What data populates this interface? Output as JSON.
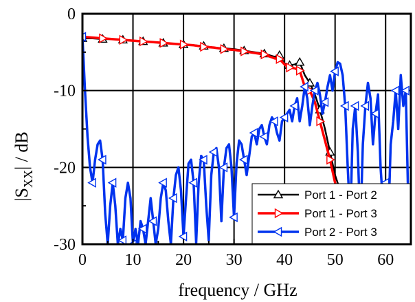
{
  "chart_data": {
    "type": "line",
    "xlabel": "frequency / GHz",
    "ylabel": "|S",
    "ylabel_sub": "XX",
    "ylabel_tail": "| / dB",
    "xlim": [
      0,
      65
    ],
    "ylim": [
      -30,
      0
    ],
    "xticks": [
      0,
      10,
      20,
      30,
      40,
      50,
      60
    ],
    "yticks": [
      0,
      -10,
      -20,
      -30
    ],
    "grid": true,
    "legend_position": "bottom-right",
    "series": [
      {
        "name": "Port 1 - Port 2",
        "color": "#000000",
        "marker": "triangle-up",
        "x": [
          0,
          2,
          4,
          6,
          8,
          10,
          12,
          14,
          16,
          18,
          20,
          22,
          24,
          26,
          28,
          30,
          32,
          34,
          36,
          38,
          39,
          40,
          41,
          42,
          43,
          44,
          45,
          46,
          47,
          48,
          49,
          50,
          52,
          54,
          56,
          58,
          60,
          62,
          64,
          65
        ],
        "y": [
          -3.2,
          -3.2,
          -3.3,
          -3.3,
          -3.4,
          -3.5,
          -3.6,
          -3.7,
          -3.8,
          -3.9,
          -4.0,
          -4.1,
          -4.2,
          -4.4,
          -4.5,
          -4.6,
          -4.8,
          -5.0,
          -5.2,
          -5.6,
          -5.4,
          -6.5,
          -6.7,
          -6.6,
          -6.3,
          -8.0,
          -9.0,
          -10.5,
          -12.5,
          -15.0,
          -18.0,
          -21.0,
          -25.0,
          -27.5,
          -29.0,
          -29.8,
          -29.5,
          -29.8,
          -29.6,
          -29.8
        ]
      },
      {
        "name": "Port 1 - Port 3",
        "color": "#ff0000",
        "marker": "triangle-right",
        "x": [
          0,
          2,
          4,
          6,
          8,
          10,
          12,
          14,
          16,
          18,
          20,
          22,
          24,
          26,
          28,
          30,
          32,
          34,
          36,
          38,
          39,
          40,
          41,
          42,
          43,
          44,
          45,
          46,
          47,
          48,
          49,
          50,
          52,
          54,
          56,
          58,
          60,
          62,
          64,
          65
        ],
        "y": [
          -3.0,
          -3.1,
          -3.2,
          -3.3,
          -3.4,
          -3.5,
          -3.6,
          -3.7,
          -3.8,
          -3.9,
          -4.0,
          -4.1,
          -4.3,
          -4.4,
          -4.6,
          -4.7,
          -4.9,
          -5.1,
          -5.3,
          -5.8,
          -5.9,
          -6.6,
          -7.0,
          -7.1,
          -7.4,
          -9.5,
          -10.0,
          -11.5,
          -14.0,
          -16.5,
          -19.0,
          -22.0,
          -26.0,
          -28.5,
          -29.6,
          -29.8,
          -29.5,
          -29.8,
          -29.5,
          -29.9
        ]
      },
      {
        "name": "Port 2 - Port 3",
        "color": "#0033ee",
        "marker": "triangle-left",
        "x": [
          0,
          0.5,
          1.0,
          1.5,
          2.0,
          2.5,
          3.0,
          3.5,
          4.0,
          4.5,
          5.0,
          5.5,
          6.0,
          6.5,
          7.0,
          7.5,
          8.0,
          8.5,
          9.0,
          9.5,
          10.0,
          10.5,
          11.0,
          11.5,
          12.0,
          12.5,
          13.0,
          13.5,
          14.0,
          14.5,
          15.0,
          15.5,
          16.0,
          16.5,
          17.0,
          17.5,
          18.0,
          18.5,
          19.0,
          19.5,
          20.0,
          20.5,
          21.0,
          21.5,
          22.0,
          22.5,
          23.0,
          23.5,
          24.0,
          24.5,
          25.0,
          25.5,
          26.0,
          26.5,
          27.0,
          27.5,
          28.0,
          28.5,
          29.0,
          29.5,
          30.0,
          30.5,
          31.0,
          31.5,
          32.0,
          32.5,
          33.0,
          33.5,
          34.0,
          34.5,
          35.0,
          35.5,
          36.0,
          36.5,
          37.0,
          37.5,
          38.0,
          38.5,
          39.0,
          39.5,
          40.0,
          40.5,
          41.0,
          41.5,
          42.0,
          42.5,
          43.0,
          43.5,
          44.0,
          44.5,
          45.0,
          45.5,
          46.0,
          46.5,
          47.0,
          47.5,
          48.0,
          48.5,
          49.0,
          49.5,
          50.0,
          50.5,
          51.0,
          51.5,
          52.0,
          52.5,
          53.0,
          53.5,
          54.0,
          54.5,
          55.0,
          55.5,
          56.0,
          56.5,
          57.0,
          57.5,
          58.0,
          58.5,
          59.0,
          59.5,
          60.0,
          60.5,
          61.0,
          61.5,
          62.0,
          62.5,
          63.0,
          63.5,
          64.0,
          64.5,
          65.0
        ],
        "y": [
          -3.0,
          -10.0,
          -16.0,
          -20.0,
          -22.0,
          -19.0,
          -17.0,
          -16.5,
          -19.0,
          -26.0,
          -30.0,
          -25.0,
          -22.0,
          -25.0,
          -30.0,
          -28.0,
          -29.5,
          -24.0,
          -22.0,
          -24.0,
          -30.0,
          -28.0,
          -30.0,
          -27.0,
          -28.0,
          -30.0,
          -27.0,
          -24.0,
          -27.0,
          -30.0,
          -28.0,
          -24.0,
          -22.0,
          -23.0,
          -27.0,
          -30.0,
          -24.0,
          -21.0,
          -20.0,
          -23.0,
          -29.0,
          -24.0,
          -19.5,
          -19.0,
          -22.0,
          -29.8,
          -22.0,
          -18.5,
          -19.0,
          -25.0,
          -29.5,
          -21.0,
          -18.0,
          -17.5,
          -20.0,
          -27.0,
          -20.0,
          -17.5,
          -17.0,
          -20.0,
          -26.5,
          -19.5,
          -16.5,
          -17.0,
          -19.0,
          -21.0,
          -18.5,
          -16.0,
          -15.5,
          -17.0,
          -15.0,
          -14.5,
          -16.0,
          -17.0,
          -14.5,
          -13.5,
          -14.0,
          -15.5,
          -16.5,
          -14.0,
          -13.5,
          -13.0,
          -12.5,
          -14.0,
          -12.0,
          -11.0,
          -14.0,
          -12.0,
          -9.5,
          -11.0,
          -14.5,
          -12.0,
          -10.0,
          -9.0,
          -10.5,
          -13.0,
          -11.5,
          -9.5,
          -8.0,
          -10.0,
          -7.5,
          -6.3,
          -6.5,
          -8.0,
          -12.0,
          -20.0,
          -27.0,
          -15.0,
          -12.0,
          -18.0,
          -28.0,
          -17.0,
          -12.0,
          -9.0,
          -11.0,
          -17.0,
          -13.0,
          -10.5,
          -20.0,
          -25.0,
          -22.0,
          -28.0,
          -17.0,
          -14.0,
          -10.0,
          -15.0,
          -8.0,
          -12.0,
          -10.0,
          -25.0,
          -29.5
        ]
      }
    ]
  }
}
